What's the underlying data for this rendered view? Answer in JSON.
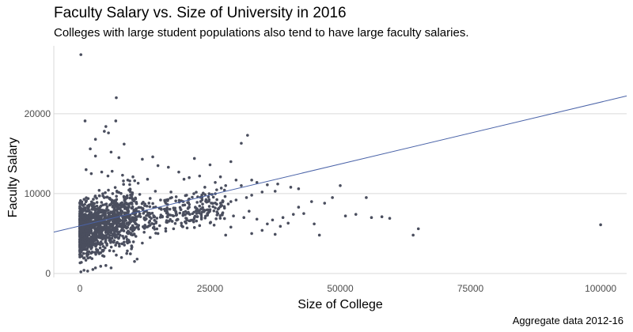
{
  "header": {
    "title": "Faculty Salary vs. Size of University in 2016",
    "subtitle": "Colleges with large student populations also tend to have large faculty salaries.",
    "caption": "Aggregate data 2012-16"
  },
  "chart_data": {
    "type": "scatter",
    "title": "Faculty Salary vs. Size of University in 2016",
    "subtitle": "Colleges with large student populations also tend to have large faculty salaries.",
    "caption": "Aggregate data 2012-16",
    "xlabel": "Size of College",
    "ylabel": "Faculty Salary",
    "xlim": [
      -5000,
      105000
    ],
    "ylim": [
      -500,
      28500
    ],
    "x_ticks": [
      0,
      25000,
      50000,
      75000,
      100000
    ],
    "x_tick_labels": [
      "0",
      "25000",
      "50000",
      "75000",
      "100000"
    ],
    "y_ticks": [
      0,
      10000,
      20000
    ],
    "y_tick_labels": [
      "0",
      "10000",
      "20000"
    ],
    "grid": "horizontal major lines",
    "legend": "none",
    "point_color": "#4a4e5e",
    "trend_color": "#4a63a8",
    "trendline": {
      "intercept": 5950,
      "slope": 0.155
    },
    "points": [
      [
        200,
        27400
      ],
      [
        7000,
        22000
      ],
      [
        6900,
        19100
      ],
      [
        1000,
        19100
      ],
      [
        5000,
        18400
      ],
      [
        4700,
        17800
      ],
      [
        5500,
        17600
      ],
      [
        32200,
        17300
      ],
      [
        31000,
        16300
      ],
      [
        3000,
        16800
      ],
      [
        8500,
        16200
      ],
      [
        2000,
        15600
      ],
      [
        6000,
        15200
      ],
      [
        3000,
        14700
      ],
      [
        29000,
        14000
      ],
      [
        7500,
        14500
      ],
      [
        12000,
        14300
      ],
      [
        14000,
        14600
      ],
      [
        22000,
        14400
      ],
      [
        25000,
        13600
      ],
      [
        15000,
        13500
      ],
      [
        17000,
        13300
      ],
      [
        19000,
        12700
      ],
      [
        23000,
        12200
      ],
      [
        27000,
        12100
      ],
      [
        30000,
        11700
      ],
      [
        33000,
        11700
      ],
      [
        20000,
        11800
      ],
      [
        21000,
        12000
      ],
      [
        26000,
        11400
      ],
      [
        28000,
        11000
      ],
      [
        31000,
        11000
      ],
      [
        24000,
        10800
      ],
      [
        34000,
        11400
      ],
      [
        36000,
        11100
      ],
      [
        38000,
        11200
      ],
      [
        40500,
        10800
      ],
      [
        42000,
        10600
      ],
      [
        50000,
        11000
      ],
      [
        55000,
        9500
      ],
      [
        37500,
        10300
      ],
      [
        35000,
        10200
      ],
      [
        33000,
        9800
      ],
      [
        32000,
        9500
      ],
      [
        30000,
        9200
      ],
      [
        29000,
        9000
      ],
      [
        28500,
        8700
      ],
      [
        27000,
        8400
      ],
      [
        26000,
        8200
      ],
      [
        25000,
        8000
      ],
      [
        24000,
        7900
      ],
      [
        22500,
        8100
      ],
      [
        21000,
        8300
      ],
      [
        23500,
        7700
      ],
      [
        26500,
        7500
      ],
      [
        29500,
        7200
      ],
      [
        31500,
        7000
      ],
      [
        32500,
        7800
      ],
      [
        34000,
        6800
      ],
      [
        36000,
        6200
      ],
      [
        37000,
        6700
      ],
      [
        38500,
        5900
      ],
      [
        39000,
        7000
      ],
      [
        41000,
        7400
      ],
      [
        40000,
        6300
      ],
      [
        35000,
        5400
      ],
      [
        33000,
        5000
      ],
      [
        29000,
        5800
      ],
      [
        28000,
        4800
      ],
      [
        37500,
        4900
      ],
      [
        43000,
        7500
      ],
      [
        45000,
        6200
      ],
      [
        46000,
        4800
      ],
      [
        51000,
        7200
      ],
      [
        53000,
        7400
      ],
      [
        56000,
        7000
      ],
      [
        58000,
        7100
      ],
      [
        59500,
        6900
      ],
      [
        64000,
        4800
      ],
      [
        65000,
        5600
      ],
      [
        100000,
        6100
      ],
      [
        42000,
        8300
      ],
      [
        44500,
        9000
      ],
      [
        47000,
        8800
      ],
      [
        48500,
        9500
      ],
      [
        15500,
        9200
      ],
      [
        16500,
        8800
      ],
      [
        17500,
        10200
      ],
      [
        18500,
        9600
      ],
      [
        19500,
        9100
      ],
      [
        20500,
        9800
      ],
      [
        12500,
        8700
      ],
      [
        13500,
        9400
      ],
      [
        14500,
        10300
      ],
      [
        11500,
        9900
      ],
      [
        10500,
        1500
      ],
      [
        11000,
        1800
      ],
      [
        5000,
        1000
      ],
      [
        6000,
        700
      ],
      [
        4000,
        900
      ],
      [
        3000,
        700
      ],
      [
        2500,
        500
      ],
      [
        1500,
        300
      ],
      [
        800,
        400
      ],
      [
        200,
        200
      ],
      [
        9000,
        2500
      ],
      [
        8000,
        2000
      ],
      [
        7000,
        2300
      ],
      [
        6500,
        2800
      ],
      [
        10000,
        3300
      ],
      [
        12000,
        3800
      ],
      [
        13500,
        4500
      ],
      [
        15000,
        5000
      ],
      [
        16500,
        5300
      ],
      [
        18000,
        5600
      ],
      [
        19500,
        6300
      ],
      [
        21000,
        6600
      ],
      [
        22000,
        7000
      ],
      [
        23000,
        6000
      ],
      [
        24500,
        7300
      ],
      [
        1200,
        13000
      ],
      [
        2200,
        12500
      ],
      [
        4200,
        12700
      ],
      [
        5400,
        12200
      ],
      [
        6200,
        12800
      ],
      [
        8200,
        12300
      ],
      [
        9200,
        11700
      ],
      [
        10200,
        12100
      ],
      [
        11200,
        11300
      ],
      [
        13000,
        11800
      ]
    ]
  }
}
